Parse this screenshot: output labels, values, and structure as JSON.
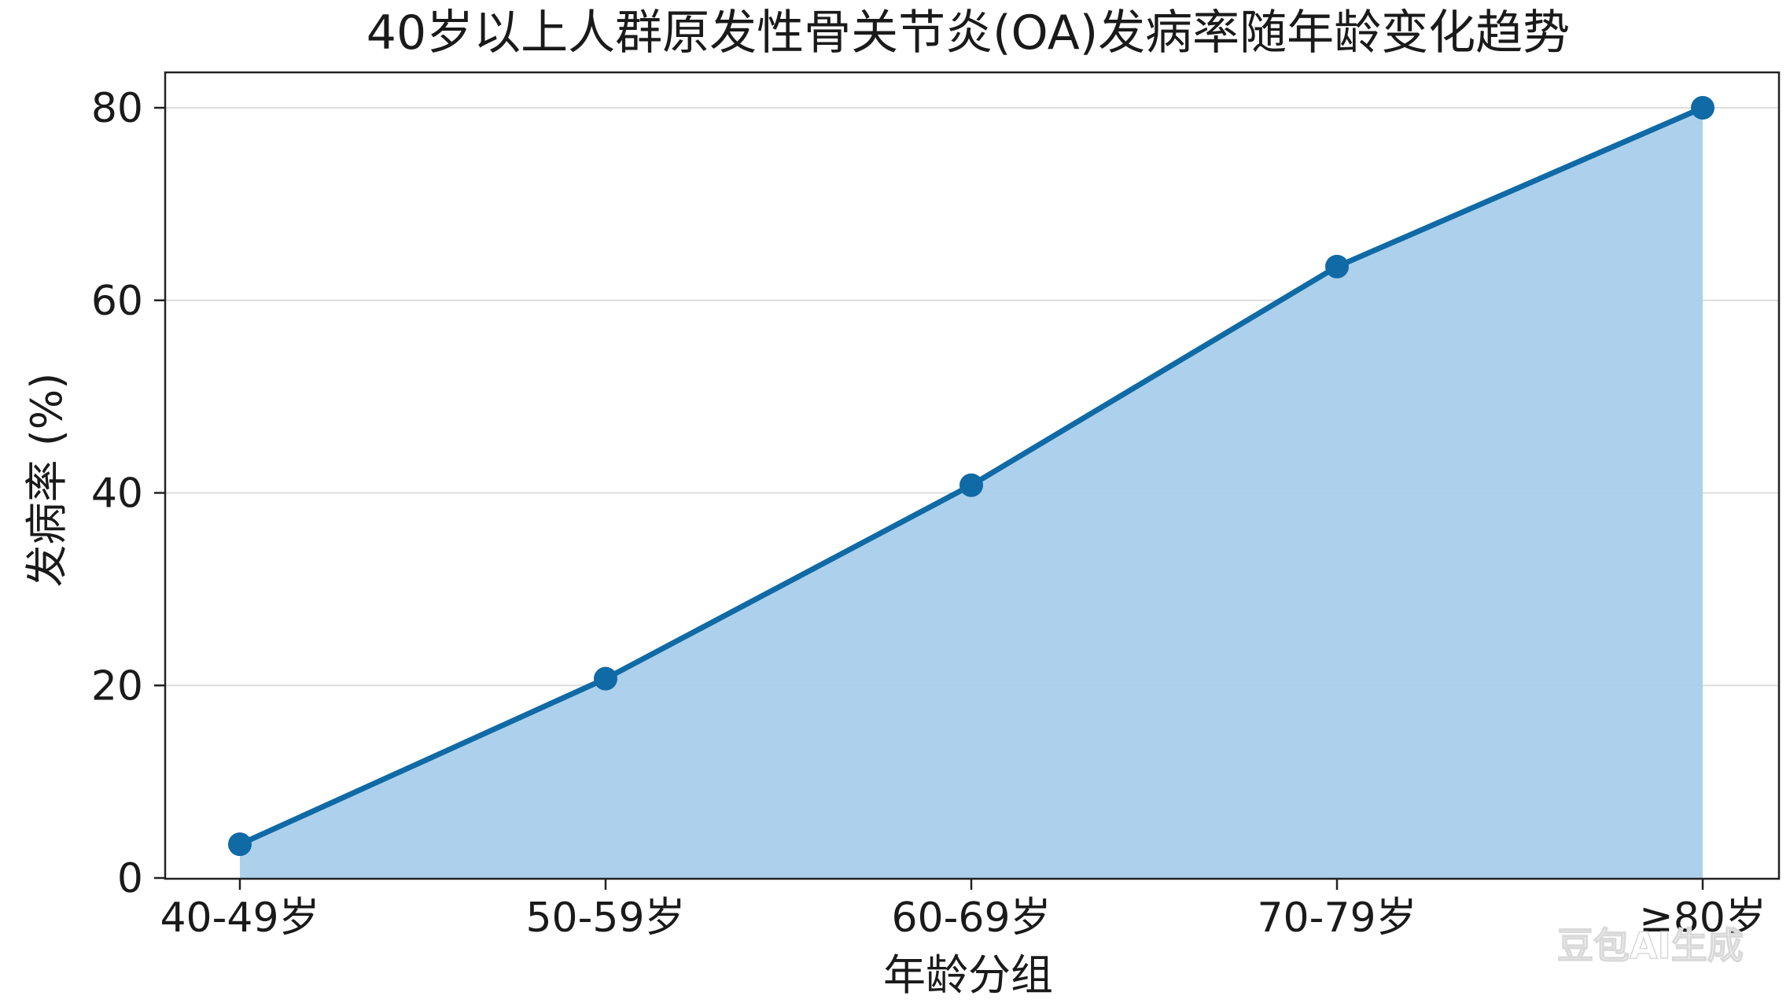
{
  "chart_data": {
    "type": "area",
    "title": "40岁以上人群原发性骨关节炎(OA)发病率随年龄变化趋势",
    "xlabel": "年龄分组",
    "ylabel": "发病率 (%)",
    "categories": [
      "40-49岁",
      "50-59岁",
      "60-69岁",
      "70-79岁",
      "≥80岁"
    ],
    "series": [
      {
        "values": [
          3.5,
          20.7,
          40.8,
          63.5,
          80.0
        ]
      }
    ],
    "ylim": [
      0,
      80
    ],
    "yticks": [
      0,
      20,
      40,
      60,
      80
    ],
    "grid": true,
    "legend": "none",
    "colors": {
      "line": "#0f6aa6",
      "fill": "#a9cfeb",
      "grid": "#dddddd",
      "axis": "#222222"
    }
  },
  "watermark": "豆包AI生成"
}
